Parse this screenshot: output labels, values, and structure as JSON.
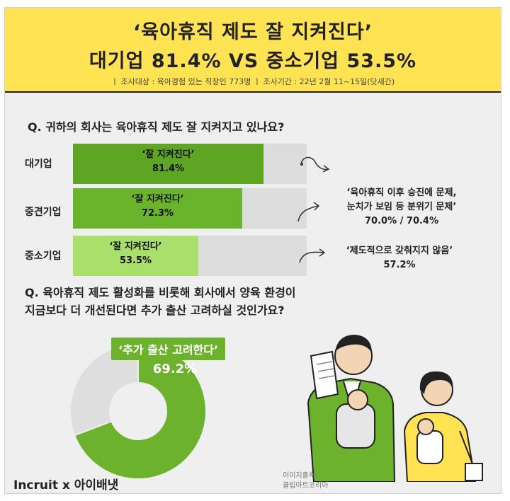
{
  "header": {
    "title_line1": "‘육아휴직 제도 잘 지켜진다’",
    "title_line2": "대기업 81.4% VS 중소기업 53.5%",
    "survey_info": "ㅣ 조사대상 : 육아경험 있는 직장인 773명 ㅣ 조사기간 : 22년 2월 11~15일(닷새간)"
  },
  "question1": "Q. 귀하의 회사는 육아휴직 제도 잘 지켜지고 있나요?",
  "question2_line1": "Q. 육아휴직 제도 활성화를 비롯해 회사에서 양육 환경이",
  "question2_line2": "지금보다 더 개선된다면 추가 출산 고려하실 것인가요?",
  "chart_data": [
    {
      "type": "bar",
      "categories": [
        "대기업",
        "중견기업",
        "중소기업"
      ],
      "values": [
        81.4,
        72.3,
        53.5
      ],
      "bar_labels": [
        "‘잘 지켜진다’",
        "‘잘 지켜진다’",
        "‘잘 지켜진다’"
      ],
      "value_labels": [
        "81.4%",
        "72.3%",
        "53.5%"
      ],
      "xlim": [
        0,
        100
      ],
      "colors": [
        "#5ea523",
        "#6ab42c",
        "#a8e06b"
      ],
      "annotations": [
        {
          "line1": "‘육아휴직 이후 승진에 문제,",
          "line2": "눈치가 보임 등 분위기 문제’",
          "line3": "70.0% / 70.4%"
        },
        {
          "line1": "‘제도적으로 갖춰지지 않음’",
          "line2": "57.2%"
        }
      ]
    },
    {
      "type": "pie",
      "values": [
        69.2,
        30.8
      ],
      "label": "‘추가 출산 고려한다’",
      "value_label": "69.2%",
      "colors": [
        "#6db22c",
        "#dedede"
      ]
    }
  ],
  "footer": {
    "logo_text": "Incruit x 아이배냇",
    "image_credit_line1": "이미지출처:",
    "image_credit_line2": "클립아트코리아"
  }
}
